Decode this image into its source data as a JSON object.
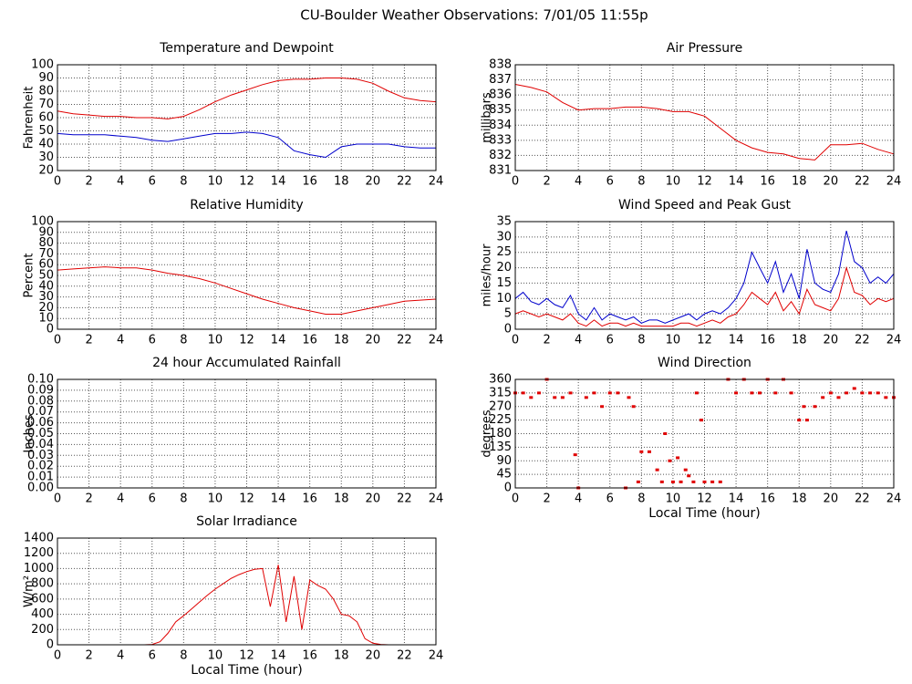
{
  "title": "CU-Boulder Weather Observations: 7/01/05 11:55p",
  "chart_data": [
    {
      "type": "line",
      "title": "Temperature and Dewpoint",
      "ylabel": "Fahrenheit",
      "x": [
        0,
        1,
        2,
        3,
        4,
        5,
        6,
        7,
        8,
        9,
        10,
        11,
        12,
        13,
        14,
        15,
        16,
        17,
        18,
        19,
        20,
        21,
        22,
        23,
        24
      ],
      "series": [
        {
          "color": "#e00000",
          "values": [
            65,
            63,
            62,
            61,
            61,
            60,
            60,
            59,
            61,
            66,
            72,
            77,
            81,
            85,
            88,
            89,
            89,
            90,
            90,
            89,
            86,
            80,
            75,
            73,
            72
          ]
        },
        {
          "color": "#0000cc",
          "values": [
            48,
            47,
            47,
            47,
            46,
            45,
            43,
            42,
            44,
            46,
            48,
            48,
            49,
            48,
            45,
            35,
            32,
            30,
            38,
            40,
            40,
            40,
            38,
            37,
            37
          ]
        }
      ],
      "xlim": [
        0,
        24
      ],
      "xticks": [
        0,
        2,
        4,
        6,
        8,
        10,
        12,
        14,
        16,
        18,
        20,
        22,
        24
      ],
      "ylim": [
        20,
        100
      ],
      "yticks": [
        20,
        30,
        40,
        50,
        60,
        70,
        80,
        90,
        100
      ],
      "grid": true
    },
    {
      "type": "line",
      "title": "Air Pressure",
      "ylabel": "millibars",
      "x": [
        0,
        1,
        2,
        3,
        4,
        5,
        6,
        7,
        8,
        9,
        10,
        11,
        12,
        13,
        14,
        15,
        16,
        17,
        18,
        19,
        20,
        21,
        22,
        23,
        24
      ],
      "series": [
        {
          "color": "#e00000",
          "values": [
            836.7,
            836.5,
            836.2,
            835.5,
            835.0,
            835.1,
            835.1,
            835.2,
            835.2,
            835.1,
            834.9,
            834.9,
            834.6,
            833.8,
            833.0,
            832.5,
            832.2,
            832.1,
            831.8,
            831.7,
            832.7,
            832.7,
            832.8,
            832.4,
            832.1
          ]
        }
      ],
      "xlim": [
        0,
        24
      ],
      "xticks": [
        0,
        2,
        4,
        6,
        8,
        10,
        12,
        14,
        16,
        18,
        20,
        22,
        24
      ],
      "ylim": [
        831,
        838
      ],
      "yticks": [
        831,
        832,
        833,
        834,
        835,
        836,
        837,
        838
      ],
      "grid": true
    },
    {
      "type": "line",
      "title": "Relative Humidity",
      "ylabel": "Percent",
      "x": [
        0,
        1,
        2,
        3,
        4,
        5,
        6,
        7,
        8,
        9,
        10,
        11,
        12,
        13,
        14,
        15,
        16,
        17,
        18,
        19,
        20,
        21,
        22,
        23,
        24
      ],
      "series": [
        {
          "color": "#e00000",
          "values": [
            55,
            56,
            57,
            58,
            57,
            57,
            55,
            52,
            50,
            47,
            43,
            38,
            33,
            28,
            24,
            20,
            17,
            14,
            14,
            17,
            20,
            23,
            26,
            27,
            28
          ]
        }
      ],
      "xlim": [
        0,
        24
      ],
      "xticks": [
        0,
        2,
        4,
        6,
        8,
        10,
        12,
        14,
        16,
        18,
        20,
        22,
        24
      ],
      "ylim": [
        0,
        100
      ],
      "yticks": [
        0,
        10,
        20,
        30,
        40,
        50,
        60,
        70,
        80,
        90,
        100
      ],
      "grid": true
    },
    {
      "type": "line",
      "title": "Wind Speed and Peak Gust",
      "ylabel": "miles/hour",
      "x": [
        0,
        0.5,
        1,
        1.5,
        2,
        2.5,
        3,
        3.5,
        4,
        4.5,
        5,
        5.5,
        6,
        6.5,
        7,
        7.5,
        8,
        8.5,
        9,
        9.5,
        10,
        10.5,
        11,
        11.5,
        12,
        12.5,
        13,
        13.5,
        14,
        14.5,
        15,
        15.5,
        16,
        16.5,
        17,
        17.5,
        18,
        18.5,
        19,
        19.5,
        20,
        20.5,
        21,
        21.5,
        22,
        22.5,
        23,
        23.5,
        24
      ],
      "series": [
        {
          "color": "#0000cc",
          "values": [
            10,
            12,
            9,
            8,
            10,
            8,
            7,
            11,
            5,
            3,
            7,
            3,
            5,
            4,
            3,
            4,
            2,
            3,
            3,
            2,
            3,
            4,
            5,
            3,
            5,
            6,
            5,
            7,
            10,
            15,
            25,
            20,
            15,
            22,
            12,
            18,
            10,
            26,
            15,
            13,
            12,
            18,
            32,
            22,
            20,
            15,
            17,
            15,
            18
          ]
        },
        {
          "color": "#e00000",
          "values": [
            5,
            6,
            5,
            4,
            5,
            4,
            3,
            5,
            2,
            1,
            3,
            1,
            2,
            2,
            1,
            2,
            1,
            1,
            1,
            1,
            1,
            2,
            2,
            1,
            2,
            3,
            2,
            4,
            5,
            8,
            12,
            10,
            8,
            12,
            6,
            9,
            5,
            13,
            8,
            7,
            6,
            10,
            20,
            12,
            11,
            8,
            10,
            9,
            10
          ]
        }
      ],
      "xlim": [
        0,
        24
      ],
      "xticks": [
        0,
        2,
        4,
        6,
        8,
        10,
        12,
        14,
        16,
        18,
        20,
        22,
        24
      ],
      "ylim": [
        0,
        35
      ],
      "yticks": [
        0,
        5,
        10,
        15,
        20,
        25,
        30,
        35
      ],
      "grid": true
    },
    {
      "type": "line",
      "title": "24 hour Accumulated Rainfall",
      "ylabel": "Inches",
      "x": [
        0,
        1,
        2,
        3,
        4,
        5,
        6,
        7,
        8,
        9,
        10,
        11,
        12,
        13,
        14,
        15,
        16,
        17,
        18,
        19,
        20,
        21,
        22,
        23,
        24
      ],
      "series": [
        {
          "color": "#e00000",
          "values": [
            0,
            0,
            0,
            0,
            0,
            0,
            0,
            0,
            0,
            0,
            0,
            0,
            0,
            0,
            0,
            0,
            0,
            0,
            0,
            0,
            0,
            0,
            0,
            0,
            0
          ]
        }
      ],
      "xlim": [
        0,
        24
      ],
      "xticks": [
        0,
        2,
        4,
        6,
        8,
        10,
        12,
        14,
        16,
        18,
        20,
        22,
        24
      ],
      "ylim": [
        0,
        0.1
      ],
      "yticks": [
        {
          "value": 0,
          "label": "0.00"
        },
        {
          "value": 0.01,
          "label": "0.01"
        },
        {
          "value": 0.02,
          "label": "0.02"
        },
        {
          "value": 0.03,
          "label": "0.03"
        },
        {
          "value": 0.04,
          "label": "0.04"
        },
        {
          "value": 0.05,
          "label": "0.05"
        },
        {
          "value": 0.06,
          "label": "0.06"
        },
        {
          "value": 0.07,
          "label": "0.07"
        },
        {
          "value": 0.08,
          "label": "0.08"
        },
        {
          "value": 0.09,
          "label": "0.09"
        },
        {
          "value": 0.1,
          "label": "0.10"
        }
      ],
      "grid": true
    },
    {
      "type": "scatter",
      "title": "Wind Direction",
      "ylabel": "degrees",
      "xlabel": "Local Time (hour)",
      "x": [
        0,
        0.5,
        1,
        1.5,
        2,
        2.5,
        3,
        3.5,
        3.8,
        4,
        4.5,
        5,
        5.5,
        6,
        6.5,
        7,
        7.2,
        7.5,
        7.8,
        8,
        8.5,
        9,
        9.3,
        9.5,
        9.8,
        10,
        10.3,
        10.5,
        10.8,
        11,
        11.3,
        11.5,
        11.8,
        12,
        12.5,
        13,
        13.5,
        14,
        14.5,
        15,
        15.5,
        16,
        16.5,
        17,
        17.5,
        18,
        18.3,
        18.5,
        19,
        19.5,
        20,
        20.5,
        21,
        21.5,
        22,
        22.5,
        23,
        23.5,
        24
      ],
      "series": [
        {
          "color": "#e00000",
          "values": [
            315,
            315,
            300,
            315,
            360,
            300,
            300,
            315,
            110,
            0,
            300,
            315,
            270,
            315,
            315,
            0,
            300,
            270,
            20,
            120,
            120,
            60,
            20,
            180,
            90,
            20,
            100,
            20,
            60,
            40,
            20,
            315,
            225,
            20,
            20,
            20,
            360,
            315,
            360,
            315,
            315,
            360,
            315,
            360,
            315,
            225,
            270,
            225,
            270,
            300,
            315,
            300,
            315,
            330,
            315,
            315,
            315,
            300,
            300
          ]
        }
      ],
      "xlim": [
        0,
        24
      ],
      "xticks": [
        0,
        2,
        4,
        6,
        8,
        10,
        12,
        14,
        16,
        18,
        20,
        22,
        24
      ],
      "ylim": [
        0,
        360
      ],
      "yticks": [
        0,
        45,
        90,
        135,
        180,
        225,
        270,
        315,
        360
      ],
      "grid": true
    },
    {
      "type": "line",
      "title": "Solar Irradiance",
      "ylabel": "W/m²",
      "xlabel": "Local Time (hour)",
      "x": [
        0,
        0.5,
        1,
        1.5,
        2,
        2.5,
        3,
        3.5,
        4,
        4.5,
        5,
        5.5,
        6,
        6.5,
        7,
        7.5,
        8,
        8.5,
        9,
        9.5,
        10,
        10.5,
        11,
        11.5,
        12,
        12.5,
        13,
        13.5,
        14,
        14.5,
        15,
        15.5,
        16,
        16.5,
        17,
        17.5,
        18,
        18.5,
        19,
        19.5,
        20,
        20.5,
        21,
        21.5,
        22,
        22.5,
        23,
        23.5,
        24
      ],
      "series": [
        {
          "color": "#e00000",
          "values": [
            0,
            0,
            0,
            0,
            0,
            0,
            0,
            0,
            0,
            0,
            0,
            0,
            5,
            40,
            150,
            300,
            380,
            470,
            560,
            650,
            730,
            800,
            870,
            920,
            960,
            990,
            1000,
            500,
            1050,
            300,
            900,
            200,
            850,
            780,
            730,
            600,
            400,
            380,
            300,
            80,
            20,
            5,
            0,
            0,
            0,
            0,
            0,
            0,
            0
          ]
        }
      ],
      "xlim": [
        0,
        24
      ],
      "xticks": [
        0,
        2,
        4,
        6,
        8,
        10,
        12,
        14,
        16,
        18,
        20,
        22,
        24
      ],
      "ylim": [
        0,
        1400
      ],
      "yticks": [
        0,
        200,
        400,
        600,
        800,
        1000,
        1200,
        1400
      ],
      "grid": true
    }
  ]
}
